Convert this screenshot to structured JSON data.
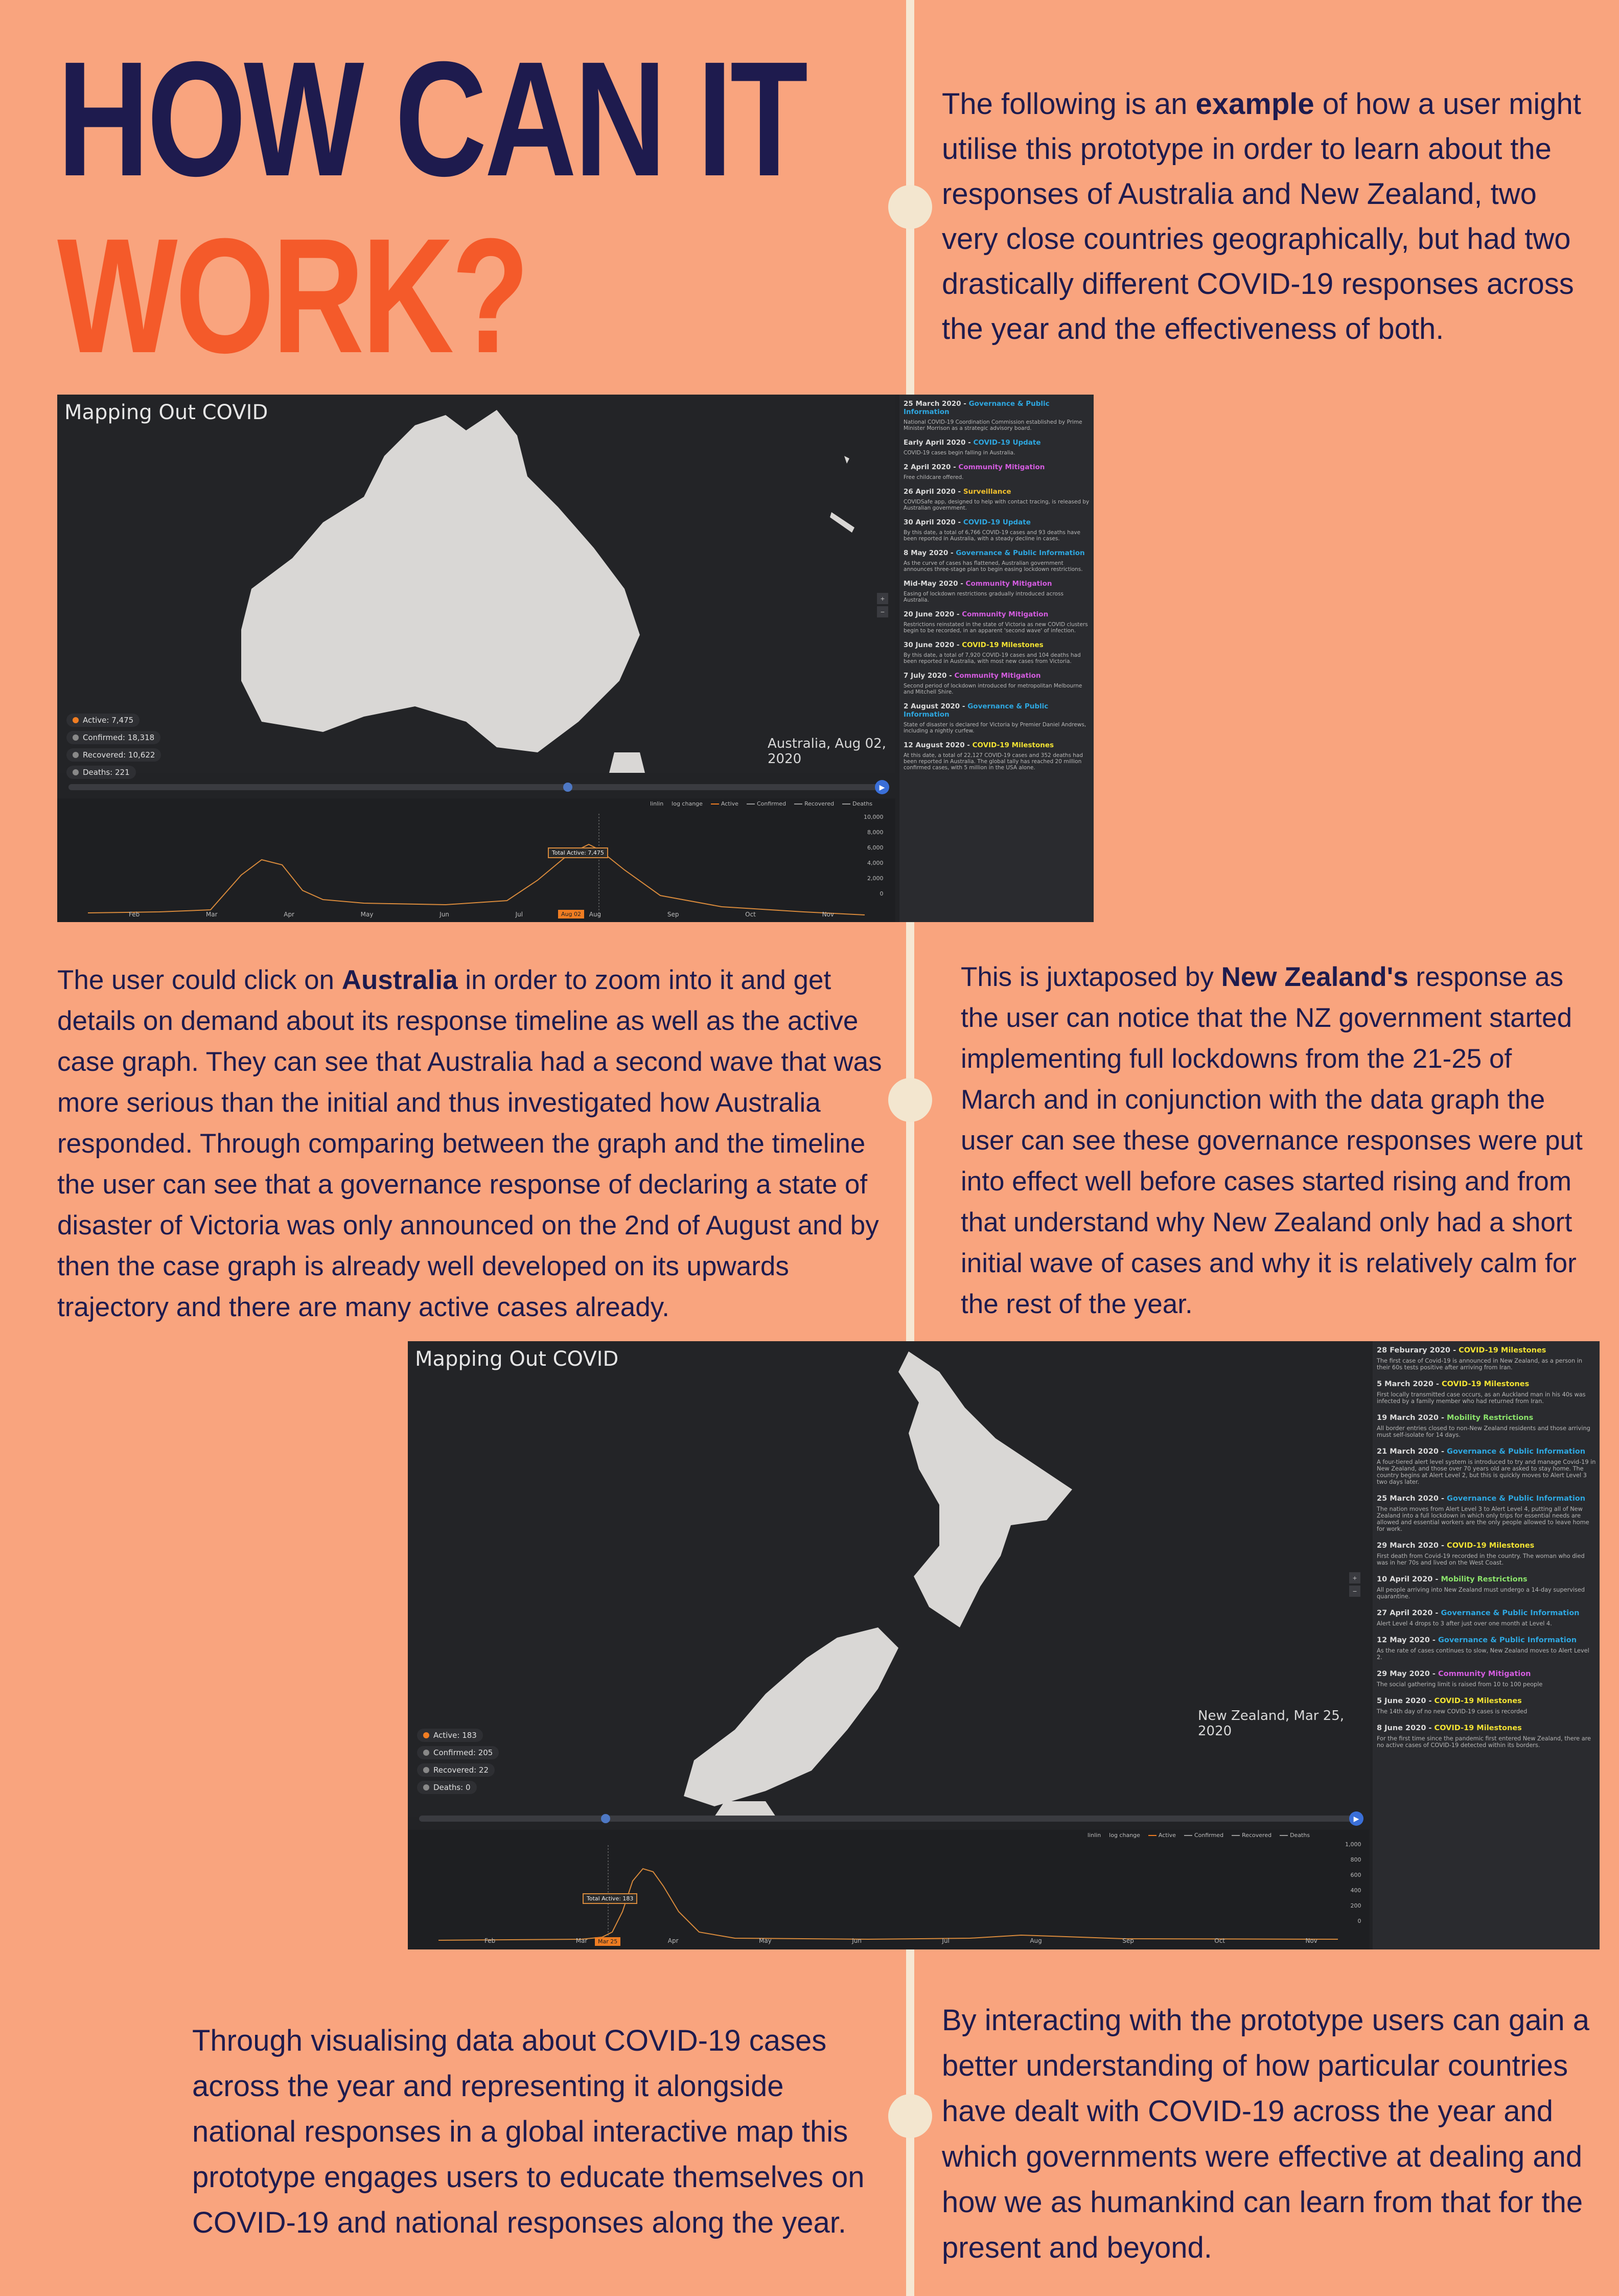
{
  "header": {
    "title_line1": "HOW CAN IT",
    "title_line2": "WORK?"
  },
  "intro": {
    "pre": "The following is an ",
    "bold": "example",
    "post": " of how a user might utilise this prototype in order to learn about the responses of Australia and New Zealand, two very close countries geographically, but had two drastically different COVID-19 responses across the year and the effectiveness of both."
  },
  "australia_text": {
    "pre": "The user could click on ",
    "bold": "Australia",
    "post": " in order to zoom into it and get details on demand about its response timeline as well as the active case graph.  They can see that Australia had a second wave that was more serious than the initial and thus investigated how Australia responded. Through comparing between the graph and the timeline the user can see that a governance response of declaring a state of disaster of Victoria was only announced on the 2nd of August and by then the case graph is already well developed on its upwards trajectory and there are many active cases already."
  },
  "nz_text": {
    "pre": "This is juxtaposed by ",
    "bold": "New Zealand's",
    "post": " response as the user can notice that the NZ government started implementing full lockdowns from the 21-25 of March and in conjunction with the data graph the user can see these governance responses were put into effect well before cases started rising and from that understand why New Zealand only had a short initial wave of cases and why it is relatively calm for the rest of the year."
  },
  "outro_left": "Through visualising data about COVID-19 cases across the year and representing it alongside national responses in a global interactive map this prototype engages users to educate themselves on COVID-19 and national responses along the year.",
  "outro_right": "By interacting with the prototype users can gain a better understanding of how particular countries have dealt with COVID-19 across the year and which governments were effective at dealing and how we as humankind can learn from that for the present and beyond.",
  "colors": {
    "background": "#F9A47E",
    "navy": "#1E1B4E",
    "orange": "#F45A2A",
    "governance": "#2EA7E0",
    "covid_update": "#2EA7E0",
    "community": "#D45CE0",
    "surveillance": "#F2C12E",
    "milestones": "#F2E233",
    "mobility": "#8BE36B",
    "active": "#F07D22"
  },
  "australia_app": {
    "app_title": "Mapping Out COVID",
    "map_caption": "Australia, Aug 02, 2020",
    "stats": [
      {
        "label": "Active: 7,475",
        "color": "#F07D22"
      },
      {
        "label": "Confirmed: 18,318",
        "color": "#888888"
      },
      {
        "label": "Recovered: 10,622",
        "color": "#888888"
      },
      {
        "label": "Deaths: 221",
        "color": "#888888"
      }
    ],
    "legend": {
      "scale": "linlin",
      "log": "log change",
      "active": "Active",
      "confirmed": "Confirmed",
      "recovered": "Recovered",
      "deaths": "Deaths"
    },
    "tooltip": "Total Active: 7,475",
    "highlight_month": "Aug 02",
    "x_labels": [
      "Feb",
      "Mar",
      "Apr",
      "May",
      "Jun",
      "Jul",
      "Aug",
      "Sep",
      "Oct",
      "Nov"
    ],
    "y_labels": [
      "10,000",
      "8,000",
      "6,000",
      "4,000",
      "2,000",
      "0"
    ],
    "timeline": [
      {
        "date": "25 March 2020",
        "tag": "Governance & Public Information",
        "tag_color": "#2EA7E0",
        "text": "National COVID-19 Coordination Commission established by Prime Minister Morrison as a strategic advisory board."
      },
      {
        "date": "Early April 2020",
        "tag": "COVID-19 Update",
        "tag_color": "#2EA7E0",
        "text": "COVID-19 cases begin falling in Australia."
      },
      {
        "date": "2 April 2020",
        "tag": "Community Mitigation",
        "tag_color": "#D45CE0",
        "text": "Free childcare offered."
      },
      {
        "date": "26 April 2020",
        "tag": "Surveillance",
        "tag_color": "#F2C12E",
        "text": "COVIDSafe app, designed to help with contact tracing, is released by Australian government."
      },
      {
        "date": "30 April 2020",
        "tag": "COVID-19 Update",
        "tag_color": "#2EA7E0",
        "text": "By this date, a total of 6,766 COVID-19 cases and 93 deaths have been reported in Australia, with a steady decline in cases."
      },
      {
        "date": "8 May 2020",
        "tag": "Governance & Public Information",
        "tag_color": "#2EA7E0",
        "text": "As the curve of cases has flattened, Australian government announces three-stage plan to begin easing lockdown restrictions."
      },
      {
        "date": "Mid-May 2020",
        "tag": "Community Mitigation",
        "tag_color": "#D45CE0",
        "text": "Easing of lockdown restrictions gradually introduced across Australia."
      },
      {
        "date": "20 June 2020",
        "tag": "Community Mitigation",
        "tag_color": "#D45CE0",
        "text": "Restrictions reinstated in the state of Victoria as new COVID clusters begin to be recorded, in an apparent 'second wave' of infection."
      },
      {
        "date": "30 June 2020",
        "tag": "COVID-19 Milestones",
        "tag_color": "#F2E233",
        "text": "By this date, a total of 7,920 COVID-19 cases and 104 deaths had been reported in Australia, with most new cases from Victoria."
      },
      {
        "date": "7 July 2020",
        "tag": "Community Mitigation",
        "tag_color": "#D45CE0",
        "text": "Second period of lockdown introduced for metropolitan Melbourne and Mitchell Shire."
      },
      {
        "date": "2 August 2020",
        "tag": "Governance & Public Information",
        "tag_color": "#2EA7E0",
        "text": "State of disaster is declared for Victoria by Premier Daniel Andrews, including a nightly curfew."
      },
      {
        "date": "12 August 2020",
        "tag": "COVID-19 Milestones",
        "tag_color": "#F2E233",
        "text": "At this date, a total of 22,127 COVID-19 cases and 352 deaths had been reported in Australia. The global tally has reached 20 million confirmed cases, with 5 million in the USA alone."
      }
    ]
  },
  "nz_app": {
    "app_title": "Mapping Out COVID",
    "map_caption": "New Zealand, Mar 25, 2020",
    "stats": [
      {
        "label": "Active: 183",
        "color": "#F07D22"
      },
      {
        "label": "Confirmed: 205",
        "color": "#888888"
      },
      {
        "label": "Recovered: 22",
        "color": "#888888"
      },
      {
        "label": "Deaths: 0",
        "color": "#888888"
      }
    ],
    "legend": {
      "scale": "linlin",
      "log": "log change",
      "active": "Active",
      "confirmed": "Confirmed",
      "recovered": "Recovered",
      "deaths": "Deaths"
    },
    "tooltip": "Total Active: 183",
    "highlight_month": "Mar 25",
    "x_labels": [
      "Feb",
      "Mar",
      "Apr",
      "May",
      "Jun",
      "Jul",
      "Aug",
      "Sep",
      "Oct",
      "Nov"
    ],
    "y_labels": [
      "1,000",
      "800",
      "600",
      "400",
      "200",
      "0"
    ],
    "timeline": [
      {
        "date": "28 Feburary 2020",
        "tag": "COVID-19 Milestones",
        "tag_color": "#F2E233",
        "text": "The first case of Covid-19 is announced in New Zealand, as a person in their 60s tests positive after arriving from Iran."
      },
      {
        "date": "5 March 2020",
        "tag": "COVID-19 Milestones",
        "tag_color": "#F2E233",
        "text": "First locally transmitted case occurs, as an Auckland man in his 40s was infected by a family member who had returned from Iran."
      },
      {
        "date": "19 March 2020",
        "tag": "Mobility Restrictions",
        "tag_color": "#8BE36B",
        "text": "All border entries closed to non-New Zealand residents and those arriving must self-isolate for 14 days."
      },
      {
        "date": "21 March 2020",
        "tag": "Governance & Public Information",
        "tag_color": "#2EA7E0",
        "text": "A four-tiered alert level system is introduced to try and manage Covid-19 in New Zealand, and those over 70 years old are asked to stay home. The country begins at Alert Level 2, but this is quickly moves to Alert Level 3 two days later."
      },
      {
        "date": "25 March 2020",
        "tag": "Governance & Public Information",
        "tag_color": "#2EA7E0",
        "text": "The nation moves from Alert Level 3 to Alert Level 4, putting all of New Zealand into a full lockdown in which only trips for essential needs are allowed and essential workers are the only people allowed to leave home for work."
      },
      {
        "date": "29 March 2020",
        "tag": "COVID-19 Milestones",
        "tag_color": "#F2E233",
        "text": "First death from Covid-19 recorded in the country. The woman who died was in her 70s and lived on the West Coast."
      },
      {
        "date": "10 April 2020",
        "tag": "Mobility Restrictions",
        "tag_color": "#8BE36B",
        "text": "All people arriving into New Zealand must undergo a 14-day supervised quarantine."
      },
      {
        "date": "27 April 2020",
        "tag": "Governance & Public Information",
        "tag_color": "#2EA7E0",
        "text": "Alert Level 4 drops to 3 after just over one month at Level 4."
      },
      {
        "date": "12 May 2020",
        "tag": "Governance & Public Information",
        "tag_color": "#2EA7E0",
        "text": "As the rate of cases continues to slow, New Zealand moves to Alert Level 2."
      },
      {
        "date": "29 May 2020",
        "tag": "Community Mitigation",
        "tag_color": "#D45CE0",
        "text": "The social gathering limit is raised from 10 to 100 people"
      },
      {
        "date": "5 June 2020",
        "tag": "COVID-19 Milestones",
        "tag_color": "#F2E233",
        "text": "The 14th day of no new COVID-19 cases is recorded"
      },
      {
        "date": "8 June 2020",
        "tag": "COVID-19 Milestones",
        "tag_color": "#F2E233",
        "text": "For the first time since the pandemic first entered New Zealand, there are no active cases of COVID-19 detected within its borders."
      }
    ]
  }
}
